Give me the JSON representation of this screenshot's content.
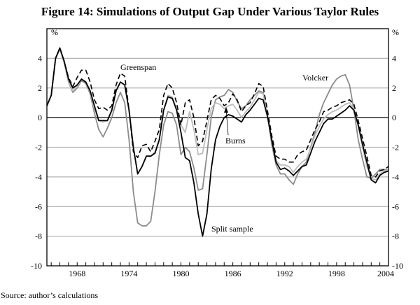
{
  "chart_data": {
    "type": "line",
    "title": "Figure 14: Simulations of Output Gap Under Various Taylor Rules",
    "ylabel_left": "%",
    "ylabel_right": "%",
    "xlim": [
      1964.5,
      2004.0
    ],
    "ylim": [
      -10,
      6
    ],
    "yticks": [
      4,
      2,
      0,
      -2,
      -4,
      -6,
      -8,
      -10
    ],
    "xtick_labels": [
      "1968",
      "1974",
      "1980",
      "1986",
      "1992",
      "1998",
      "2004"
    ],
    "grid": true,
    "legend": "inline annotations",
    "source": "Source: author’s calculations",
    "x": [
      1964.5,
      1965,
      1965.5,
      1966,
      1966.5,
      1967,
      1967.5,
      1968,
      1968.5,
      1969,
      1969.5,
      1970,
      1970.5,
      1971,
      1971.5,
      1972,
      1972.5,
      1973,
      1973.5,
      1974,
      1974.5,
      1975,
      1975.5,
      1976,
      1976.5,
      1977,
      1977.5,
      1978,
      1978.5,
      1979,
      1979.5,
      1980,
      1980.5,
      1981,
      1981.5,
      1982,
      1982.5,
      1983,
      1983.5,
      1984,
      1984.5,
      1985,
      1985.5,
      1986,
      1986.5,
      1987,
      1987.5,
      1988,
      1988.5,
      1989,
      1989.5,
      1990,
      1990.5,
      1991,
      1991.5,
      1992,
      1992.5,
      1993,
      1993.5,
      1994,
      1994.5,
      1995,
      1995.5,
      1996,
      1996.5,
      1997,
      1997.5,
      1998,
      1998.5,
      1999,
      1999.5,
      2000,
      2000.5,
      2001,
      2001.5,
      2002,
      2002.5,
      2003,
      2003.5,
      2004
    ],
    "series": [
      {
        "name": "Volcker",
        "color": "#8c8c8c",
        "dash": false,
        "values": [
          0.8,
          1.5,
          4.0,
          4.6,
          3.7,
          2.4,
          1.7,
          2.0,
          2.5,
          2.3,
          1.6,
          0.3,
          -0.8,
          -1.3,
          -0.7,
          0.0,
          1.0,
          1.7,
          1.0,
          -1.5,
          -5.0,
          -7.1,
          -7.3,
          -7.3,
          -7.0,
          -5.0,
          -2.5,
          -0.5,
          0.4,
          0.3,
          -0.5,
          -2.5,
          -2.0,
          -2.3,
          -3.4,
          -4.9,
          -4.8,
          -2.5,
          0.0,
          1.2,
          1.4,
          1.5,
          1.9,
          1.7,
          1.1,
          0.6,
          0.8,
          1.2,
          1.5,
          1.8,
          1.7,
          0.3,
          -1.8,
          -3.2,
          -3.8,
          -3.8,
          -4.2,
          -4.5,
          -3.8,
          -3.3,
          -3.0,
          -2.0,
          -1.0,
          0.2,
          1.0,
          1.6,
          2.2,
          2.6,
          2.8,
          2.9,
          2.2,
          0.5,
          -1.5,
          -2.8,
          -4.0,
          -4.1,
          -3.8,
          -3.5,
          -3.5,
          -3.5
        ]
      },
      {
        "name": "Burns",
        "color": "#bdbdbd",
        "dash": false,
        "values": [
          0.8,
          1.5,
          4.0,
          4.6,
          3.7,
          2.5,
          1.8,
          2.1,
          2.6,
          2.4,
          1.7,
          0.6,
          -0.2,
          -0.3,
          -0.2,
          0.4,
          1.8,
          2.4,
          2.2,
          0.4,
          -2.0,
          -3.8,
          -3.3,
          -2.6,
          -2.6,
          -2.3,
          -1.4,
          0.5,
          1.5,
          1.4,
          0.6,
          -0.5,
          -1.0,
          0.4,
          -0.8,
          -2.5,
          -2.4,
          -0.8,
          0.6,
          1.0,
          0.9,
          0.6,
          0.8,
          0.9,
          0.5,
          0.0,
          0.4,
          0.7,
          1.2,
          1.7,
          1.6,
          0.3,
          -1.4,
          -2.9,
          -3.2,
          -3.2,
          -3.3,
          -3.7,
          -3.3,
          -3.0,
          -2.8,
          -2.1,
          -1.2,
          -0.6,
          -0.1,
          0.2,
          0.4,
          0.5,
          0.7,
          0.9,
          1.0,
          0.6,
          -0.6,
          -2.0,
          -3.3,
          -4.1,
          -4.2,
          -3.8,
          -3.6,
          -3.5
        ]
      },
      {
        "name": "Greenspan",
        "color": "#000000",
        "dash": true,
        "values": [
          0.8,
          1.5,
          4.0,
          4.7,
          3.8,
          2.7,
          2.1,
          2.7,
          3.2,
          3.2,
          2.4,
          1.2,
          0.6,
          0.7,
          0.5,
          0.8,
          2.2,
          3.0,
          2.8,
          0.5,
          -2.3,
          -2.7,
          -1.9,
          -1.8,
          -2.3,
          -1.6,
          -0.8,
          1.5,
          2.3,
          2.0,
          1.0,
          -0.5,
          1.0,
          1.2,
          0.0,
          -1.9,
          -1.6,
          -0.2,
          1.2,
          1.5,
          1.3,
          0.8,
          1.0,
          1.6,
          1.2,
          0.4,
          0.8,
          1.0,
          1.6,
          2.3,
          2.1,
          0.5,
          -1.2,
          -2.6,
          -2.8,
          -2.8,
          -3.0,
          -3.0,
          -2.5,
          -2.3,
          -2.2,
          -1.5,
          -0.8,
          -0.3,
          0.4,
          0.5,
          0.7,
          0.8,
          1.0,
          1.1,
          1.2,
          0.9,
          -0.2,
          -1.4,
          -2.6,
          -3.9,
          -4.0,
          -3.6,
          -3.5,
          -3.3
        ]
      },
      {
        "name": "Split sample",
        "color": "#000000",
        "dash": false,
        "values": [
          0.8,
          1.5,
          4.0,
          4.7,
          3.8,
          2.6,
          2.0,
          2.2,
          2.6,
          2.4,
          1.8,
          0.8,
          -0.2,
          -0.2,
          -0.2,
          0.5,
          1.8,
          2.4,
          2.2,
          0.5,
          -2.0,
          -3.8,
          -3.3,
          -2.6,
          -2.6,
          -2.4,
          -1.5,
          0.5,
          1.4,
          1.3,
          0.5,
          -1.0,
          -2.7,
          -2.9,
          -4.4,
          -6.5,
          -8.0,
          -6.5,
          -3.5,
          -1.5,
          -0.6,
          0.0,
          0.2,
          0.1,
          -0.1,
          -0.3,
          0.2,
          0.5,
          0.9,
          1.3,
          1.2,
          0.1,
          -1.5,
          -3.0,
          -3.5,
          -3.4,
          -3.6,
          -3.9,
          -3.6,
          -3.3,
          -3.2,
          -2.4,
          -1.6,
          -1.0,
          -0.4,
          -0.1,
          -0.1,
          0.1,
          0.3,
          0.5,
          0.8,
          0.5,
          -0.5,
          -1.8,
          -3.0,
          -4.2,
          -4.4,
          -3.9,
          -3.7,
          -3.6
        ]
      }
    ],
    "annotations": {
      "greenspan": "Greenspan",
      "burns": "Burns",
      "volcker": "Volcker",
      "split": "Split sample"
    }
  }
}
